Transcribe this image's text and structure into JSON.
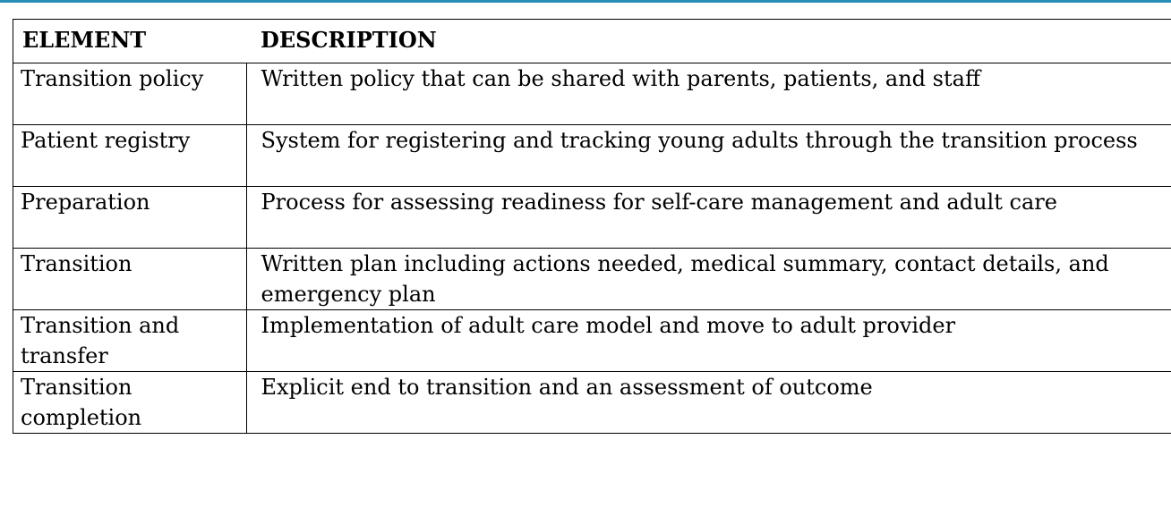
{
  "colors": {
    "top_rule": "#2a8fb8",
    "border": "#000000",
    "text": "#000000"
  },
  "table": {
    "headers": {
      "element": "ELEMENT",
      "description": "DESCRIPTION"
    },
    "rows": [
      {
        "element": "Transition policy",
        "description": "Written policy that can be shared with parents, patients, and staff"
      },
      {
        "element": "Patient registry",
        "description": "System for registering and tracking young adults through the transition process"
      },
      {
        "element": "Preparation",
        "description": "Process for assessing readiness for self-care management and adult care"
      },
      {
        "element": "Transition",
        "description": "Written plan including actions needed, medical summary, contact details, and emergency plan"
      },
      {
        "element": "Transition and transfer",
        "description": "Implementation of adult care model and move to adult provider"
      },
      {
        "element": "Transition completion",
        "description": "Explicit end to transition and an assessment of outcome"
      }
    ]
  }
}
